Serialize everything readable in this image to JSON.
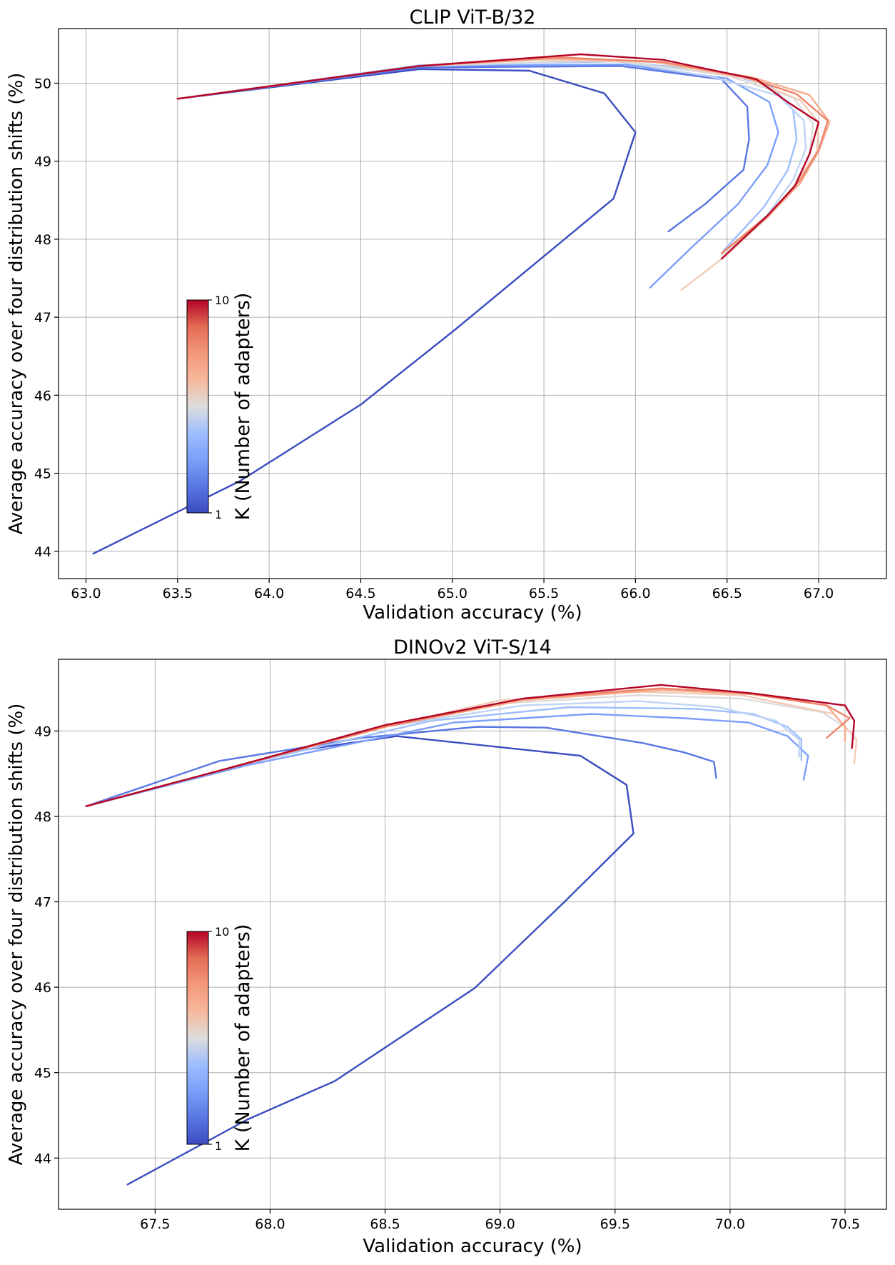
{
  "chart_data": [
    {
      "type": "line",
      "title": "CLIP ViT-B/32",
      "xlabel": "Validation accuracy (%)",
      "ylabel": "Average accuracy over four distribution shifts (%)",
      "xlim": [
        62.85,
        67.37
      ],
      "ylim": [
        43.65,
        50.7
      ],
      "xticks": [
        "63.0",
        "63.5",
        "64.0",
        "64.5",
        "65.0",
        "65.5",
        "66.0",
        "66.5",
        "67.0"
      ],
      "yticks": [
        "44",
        "45",
        "46",
        "47",
        "48",
        "49",
        "50"
      ],
      "grid": true,
      "colorbar": {
        "label": "K (Number of adapters)",
        "min": "1",
        "max": "10",
        "cmap": "coolwarm",
        "placement": "center-left"
      },
      "series": [
        {
          "name": "K=1",
          "color": "#3b4cc0",
          "x": [
            63.04,
            63.84,
            64.5,
            65.02,
            65.88,
            66.0,
            65.83,
            65.42,
            64.82,
            63.5
          ],
          "y": [
            43.97,
            44.9,
            45.88,
            46.85,
            48.52,
            49.37,
            49.87,
            50.16,
            50.18,
            49.8
          ]
        },
        {
          "name": "K=2",
          "color": "#5977e3",
          "x": [
            66.18,
            66.38,
            66.59,
            66.62,
            66.61,
            66.47,
            65.92,
            64.82,
            63.5
          ],
          "y": [
            48.1,
            48.45,
            48.89,
            49.28,
            49.7,
            50.05,
            50.22,
            50.2,
            49.8
          ]
        },
        {
          "name": "K=3",
          "color": "#7b9ff9",
          "x": [
            66.08,
            66.3,
            66.56,
            66.72,
            66.78,
            66.73,
            66.5,
            65.94,
            64.82,
            63.5
          ],
          "y": [
            47.38,
            47.88,
            48.45,
            48.95,
            49.37,
            49.76,
            50.06,
            50.24,
            50.22,
            49.8
          ]
        },
        {
          "name": "K=4",
          "color": "#9ebeff",
          "x": [
            66.48,
            66.7,
            66.83,
            66.88,
            66.86,
            66.74,
            66.45,
            65.9,
            64.82,
            63.5
          ],
          "y": [
            47.85,
            48.41,
            48.88,
            49.28,
            49.66,
            49.96,
            50.15,
            50.28,
            50.23,
            49.8
          ]
        },
        {
          "name": "K=5",
          "color": "#c0d4f5",
          "x": [
            66.48,
            66.72,
            66.86,
            66.93,
            66.92,
            66.78,
            66.42,
            65.88,
            64.82,
            63.5
          ],
          "y": [
            47.82,
            48.31,
            48.76,
            49.16,
            49.52,
            49.84,
            50.08,
            50.29,
            50.22,
            49.8
          ]
        },
        {
          "name": "K=6",
          "color": "#dddcdc",
          "x": [
            66.47,
            66.72,
            66.87,
            66.95,
            66.97,
            66.86,
            66.5,
            65.86,
            64.82,
            63.5
          ],
          "y": [
            47.8,
            48.28,
            48.7,
            49.1,
            49.48,
            49.82,
            50.1,
            50.3,
            50.22,
            49.8
          ]
        },
        {
          "name": "K=7",
          "color": "#f2cbb7",
          "x": [
            66.25,
            66.5,
            66.73,
            66.88,
            66.99,
            67.0,
            66.9,
            66.62,
            66.1,
            65.45,
            64.82,
            63.5
          ],
          "y": [
            47.35,
            47.8,
            48.3,
            48.73,
            49.12,
            49.5,
            49.78,
            50.05,
            50.27,
            50.3,
            50.22,
            49.8
          ]
        },
        {
          "name": "K=8",
          "color": "#f7ac8e",
          "x": [
            66.47,
            66.72,
            66.9,
            67.0,
            67.06,
            66.95,
            66.63,
            66.1,
            65.5,
            64.82,
            63.5
          ],
          "y": [
            47.82,
            48.28,
            48.72,
            49.13,
            49.5,
            49.85,
            50.08,
            50.28,
            50.32,
            50.22,
            49.8
          ]
        },
        {
          "name": "K=9",
          "color": "#ee8468",
          "x": [
            66.47,
            66.72,
            66.9,
            67.0,
            67.05,
            66.88,
            66.6,
            66.15,
            65.6,
            64.82,
            63.5
          ],
          "y": [
            47.82,
            48.3,
            48.76,
            49.14,
            49.52,
            49.86,
            50.08,
            50.27,
            50.33,
            50.22,
            49.8
          ]
        },
        {
          "name": "K=10",
          "color": "#b40426",
          "x": [
            66.47,
            66.72,
            66.87,
            66.95,
            67.0,
            66.83,
            66.66,
            66.15,
            65.7,
            64.82,
            63.5
          ],
          "y": [
            47.75,
            48.3,
            48.68,
            49.09,
            49.5,
            49.76,
            50.05,
            50.3,
            50.37,
            50.22,
            49.8
          ]
        }
      ]
    },
    {
      "type": "line",
      "title": "DINOv2 ViT-S/14",
      "xlabel": "Validation accuracy (%)",
      "ylabel": "Average accuracy over four distribution shifts (%)",
      "xlim": [
        67.08,
        70.68
      ],
      "ylim": [
        43.4,
        49.84
      ],
      "xticks": [
        "67.5",
        "68.0",
        "68.5",
        "69.0",
        "69.5",
        "70.0",
        "70.5"
      ],
      "yticks": [
        "44",
        "45",
        "46",
        "47",
        "48",
        "49"
      ],
      "grid": true,
      "colorbar": {
        "label": "K (Number of adapters)",
        "min": "1",
        "max": "10",
        "cmap": "coolwarm",
        "placement": "center-left"
      },
      "series": [
        {
          "name": "K=1",
          "color": "#3b4cc0",
          "x": [
            67.38,
            67.9,
            68.28,
            68.89,
            69.28,
            69.58,
            69.55,
            69.35,
            68.55,
            68.1,
            67.2
          ],
          "y": [
            43.69,
            44.45,
            44.9,
            45.99,
            47.0,
            47.8,
            48.37,
            48.71,
            48.94,
            48.76,
            48.12
          ]
        },
        {
          "name": "K=2",
          "color": "#5977e3",
          "x": [
            69.94,
            69.93,
            69.8,
            69.62,
            69.2,
            68.9,
            68.4,
            67.78,
            67.2
          ],
          "y": [
            48.45,
            48.64,
            48.75,
            48.86,
            49.04,
            49.05,
            48.92,
            48.65,
            48.12
          ]
        },
        {
          "name": "K=3",
          "color": "#7b9ff9",
          "x": [
            70.32,
            70.34,
            70.25,
            70.08,
            69.8,
            69.4,
            68.8,
            67.9,
            67.2
          ],
          "y": [
            48.43,
            48.71,
            48.94,
            49.1,
            49.15,
            49.2,
            49.1,
            48.6,
            48.12
          ]
        },
        {
          "name": "K=4",
          "color": "#9ebeff",
          "x": [
            70.31,
            70.31,
            70.25,
            70.1,
            69.85,
            69.3,
            68.7,
            67.9,
            67.2
          ],
          "y": [
            48.66,
            48.9,
            49.05,
            49.2,
            49.26,
            49.28,
            49.12,
            48.62,
            48.12
          ]
        },
        {
          "name": "K=5",
          "color": "#c0d4f5",
          "x": [
            70.3,
            70.3,
            70.2,
            69.95,
            69.6,
            69.1,
            68.5,
            67.8,
            67.2
          ],
          "y": [
            48.7,
            48.9,
            49.12,
            49.28,
            49.35,
            49.3,
            49.05,
            48.55,
            48.12
          ]
        },
        {
          "name": "K=6",
          "color": "#dddcdc",
          "x": [
            70.5,
            70.5,
            70.4,
            70.05,
            69.6,
            69.0,
            68.5,
            67.8,
            67.2
          ],
          "y": [
            48.85,
            49.05,
            49.22,
            49.38,
            49.42,
            49.32,
            49.05,
            48.55,
            48.12
          ]
        },
        {
          "name": "K=7",
          "color": "#f2cbb7",
          "x": [
            70.54,
            70.55,
            70.45,
            70.05,
            69.6,
            69.0,
            68.5,
            67.8,
            67.2
          ],
          "y": [
            48.62,
            48.9,
            49.2,
            49.42,
            49.46,
            49.36,
            49.05,
            48.55,
            48.12
          ]
        },
        {
          "name": "K=8",
          "color": "#f7ac8e",
          "x": [
            70.5,
            70.5,
            70.42,
            70.1,
            69.7,
            69.1,
            68.5,
            67.8,
            67.2
          ],
          "y": [
            48.88,
            49.05,
            49.3,
            49.43,
            49.48,
            49.36,
            49.05,
            48.55,
            48.12
          ]
        },
        {
          "name": "K=9",
          "color": "#ee8468",
          "x": [
            70.42,
            70.52,
            70.42,
            70.05,
            69.7,
            69.1,
            68.5,
            67.8,
            67.2
          ],
          "y": [
            48.92,
            49.15,
            49.3,
            49.45,
            49.5,
            49.38,
            49.05,
            48.55,
            48.12
          ]
        },
        {
          "name": "K=10",
          "color": "#b40426",
          "x": [
            70.53,
            70.54,
            70.5,
            70.1,
            69.7,
            69.1,
            68.5,
            67.8,
            67.2
          ],
          "y": [
            48.8,
            49.12,
            49.3,
            49.44,
            49.54,
            49.38,
            49.07,
            48.55,
            48.12
          ]
        }
      ]
    }
  ]
}
